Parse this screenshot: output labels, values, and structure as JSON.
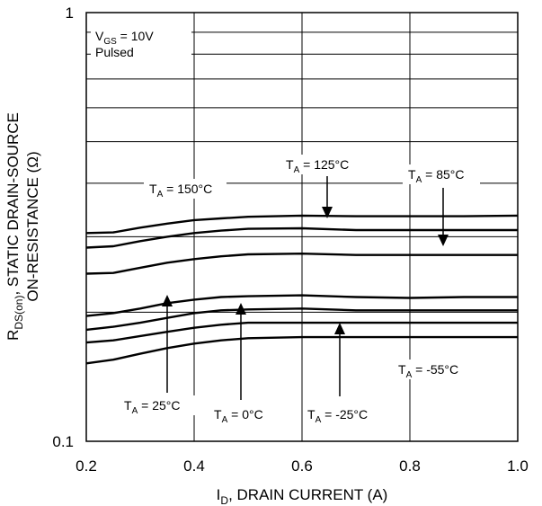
{
  "chart_data": {
    "type": "line",
    "title": "",
    "xlabel": {
      "main": "I",
      "sub": "D",
      "rest": ", DRAIN CURRENT (A)"
    },
    "ylabel": {
      "line1_main": "R",
      "line1_sub": "DS(on)",
      "line1_rest": ", STATIC DRAIN-SOURCE",
      "line2": "ON-RESISTANCE (Ω)"
    },
    "x_scale": "linear",
    "y_scale": "log",
    "xlim": [
      0.2,
      1.0
    ],
    "ylim": [
      0.1,
      1
    ],
    "x_ticks": [
      "0.2",
      "0.4",
      "0.6",
      "0.8",
      "1.0"
    ],
    "y_ticks": [
      "0.1",
      "1"
    ],
    "grid": true,
    "conditions": [
      {
        "main": "V",
        "sub": "GS",
        "rest": " = 10V"
      },
      {
        "text": "Pulsed"
      }
    ],
    "series": [
      {
        "name": "T_A = 150°C",
        "x": [
          0.2,
          0.25,
          0.3,
          0.35,
          0.4,
          0.45,
          0.5,
          0.6,
          0.7,
          0.8,
          0.9,
          1.0
        ],
        "y": [
          0.306,
          0.307,
          0.315,
          0.322,
          0.328,
          0.331,
          0.334,
          0.336,
          0.335,
          0.335,
          0.335,
          0.336
        ]
      },
      {
        "name": "T_A = 125°C",
        "x": [
          0.2,
          0.25,
          0.3,
          0.35,
          0.4,
          0.45,
          0.5,
          0.6,
          0.7,
          0.8,
          0.9,
          1.0
        ],
        "y": [
          0.283,
          0.285,
          0.293,
          0.3,
          0.306,
          0.31,
          0.313,
          0.314,
          0.311,
          0.311,
          0.311,
          0.311
        ]
      },
      {
        "name": "T_A = 85°C",
        "x": [
          0.2,
          0.25,
          0.3,
          0.35,
          0.4,
          0.45,
          0.5,
          0.6,
          0.7,
          0.8,
          0.9,
          1.0
        ],
        "y": [
          0.246,
          0.247,
          0.254,
          0.261,
          0.266,
          0.27,
          0.273,
          0.274,
          0.272,
          0.272,
          0.272,
          0.272
        ]
      },
      {
        "name": "T_A = 25°C",
        "x": [
          0.2,
          0.25,
          0.3,
          0.35,
          0.4,
          0.45,
          0.5,
          0.6,
          0.7,
          0.8,
          0.9,
          1.0
        ],
        "y": [
          0.196,
          0.199,
          0.204,
          0.21,
          0.214,
          0.217,
          0.218,
          0.219,
          0.217,
          0.216,
          0.217,
          0.217
        ]
      },
      {
        "name": "T_A = 0°C",
        "x": [
          0.2,
          0.25,
          0.3,
          0.35,
          0.4,
          0.45,
          0.5,
          0.6,
          0.7,
          0.8,
          0.9,
          1.0
        ],
        "y": [
          0.182,
          0.185,
          0.189,
          0.194,
          0.199,
          0.202,
          0.203,
          0.204,
          0.202,
          0.202,
          0.202,
          0.202
        ]
      },
      {
        "name": "T_A = -25°C",
        "x": [
          0.2,
          0.25,
          0.3,
          0.35,
          0.4,
          0.45,
          0.5,
          0.6,
          0.7,
          0.8,
          0.9,
          1.0
        ],
        "y": [
          0.17,
          0.172,
          0.176,
          0.18,
          0.184,
          0.187,
          0.189,
          0.189,
          0.189,
          0.189,
          0.189,
          0.189
        ]
      },
      {
        "name": "T_A = -55°C",
        "x": [
          0.2,
          0.25,
          0.3,
          0.35,
          0.4,
          0.45,
          0.5,
          0.6,
          0.7,
          0.8,
          0.9,
          1.0
        ],
        "y": [
          0.152,
          0.155,
          0.16,
          0.165,
          0.169,
          0.172,
          0.174,
          0.175,
          0.175,
          0.175,
          0.175,
          0.175
        ]
      }
    ],
    "annotations": [
      {
        "main": "T",
        "sub": "A",
        "rest": " = 150°C"
      },
      {
        "main": "T",
        "sub": "A",
        "rest": " = 125°C"
      },
      {
        "main": "T",
        "sub": "A",
        "rest": " = 85°C"
      },
      {
        "main": "T",
        "sub": "A",
        "rest": " = 25°C"
      },
      {
        "main": "T",
        "sub": "A",
        "rest": " = 0°C"
      },
      {
        "main": "T",
        "sub": "A",
        "rest": " = -25°C"
      },
      {
        "main": "T",
        "sub": "A",
        "rest": " = -55°C"
      }
    ]
  }
}
